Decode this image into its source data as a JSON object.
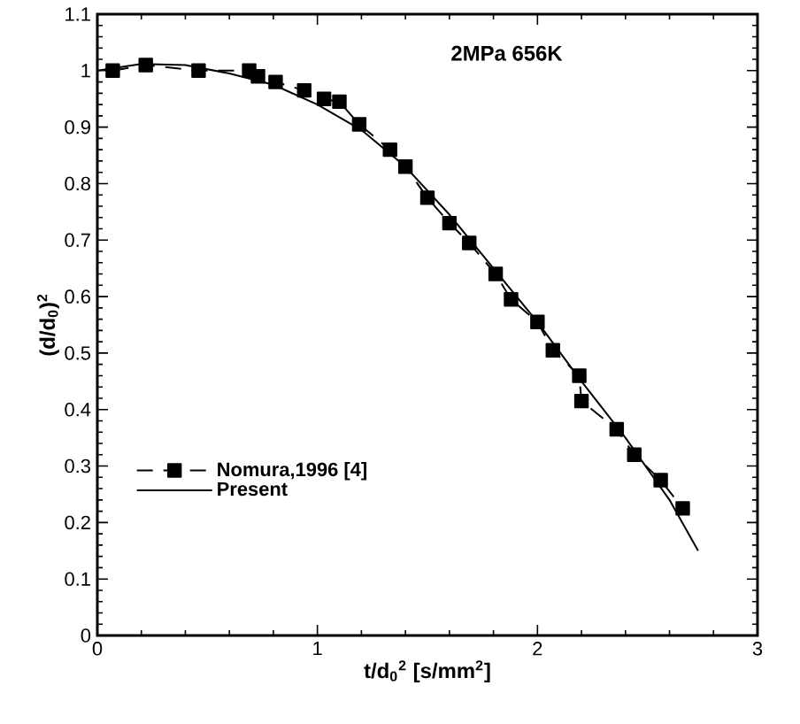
{
  "chart_data": {
    "type": "line",
    "title": "2MPa 656K",
    "xlabel": "t/d$_{0}$$^{2}$ [s/mm$^{2}$]",
    "ylabel": "(d/d$_{0}$)$^{2}$",
    "xlim": [
      0,
      3
    ],
    "ylim": [
      0,
      1.1
    ],
    "xticks": [
      0,
      1,
      2,
      3
    ],
    "yticks": [
      0,
      0.1,
      0.2,
      0.3,
      0.4,
      0.5,
      0.6,
      0.7,
      0.8,
      0.9,
      1,
      1.1
    ],
    "legend": "left",
    "grid": false,
    "series": [
      {
        "name": "Nomura,1996 [4]",
        "color": "#000000",
        "marker": "square",
        "line_style": "dashed",
        "x": [
          0.07,
          0.22,
          0.46,
          0.69,
          0.73,
          0.81,
          0.94,
          1.03,
          1.1,
          1.19,
          1.33,
          1.4,
          1.5,
          1.6,
          1.69,
          1.81,
          1.88,
          2.0,
          2.07,
          2.19,
          2.2,
          2.36,
          2.44,
          2.56,
          2.66
        ],
        "values": [
          1.0,
          1.01,
          1.0,
          1.0,
          0.99,
          0.98,
          0.965,
          0.95,
          0.945,
          0.905,
          0.86,
          0.83,
          0.775,
          0.73,
          0.695,
          0.64,
          0.595,
          0.555,
          0.505,
          0.46,
          0.415,
          0.365,
          0.32,
          0.275,
          0.225
        ]
      },
      {
        "name": "Present",
        "color": "#000000",
        "marker": "none",
        "line_style": "solid",
        "x": [
          0,
          0.2,
          0.4,
          0.6,
          0.8,
          1.0,
          1.2,
          1.4,
          1.6,
          1.8,
          2.0,
          2.2,
          2.4,
          2.6,
          2.73
        ],
        "values": [
          1.0,
          1.012,
          1.01,
          0.995,
          0.975,
          0.94,
          0.895,
          0.83,
          0.745,
          0.65,
          0.555,
          0.45,
          0.35,
          0.24,
          0.15
        ]
      }
    ]
  }
}
